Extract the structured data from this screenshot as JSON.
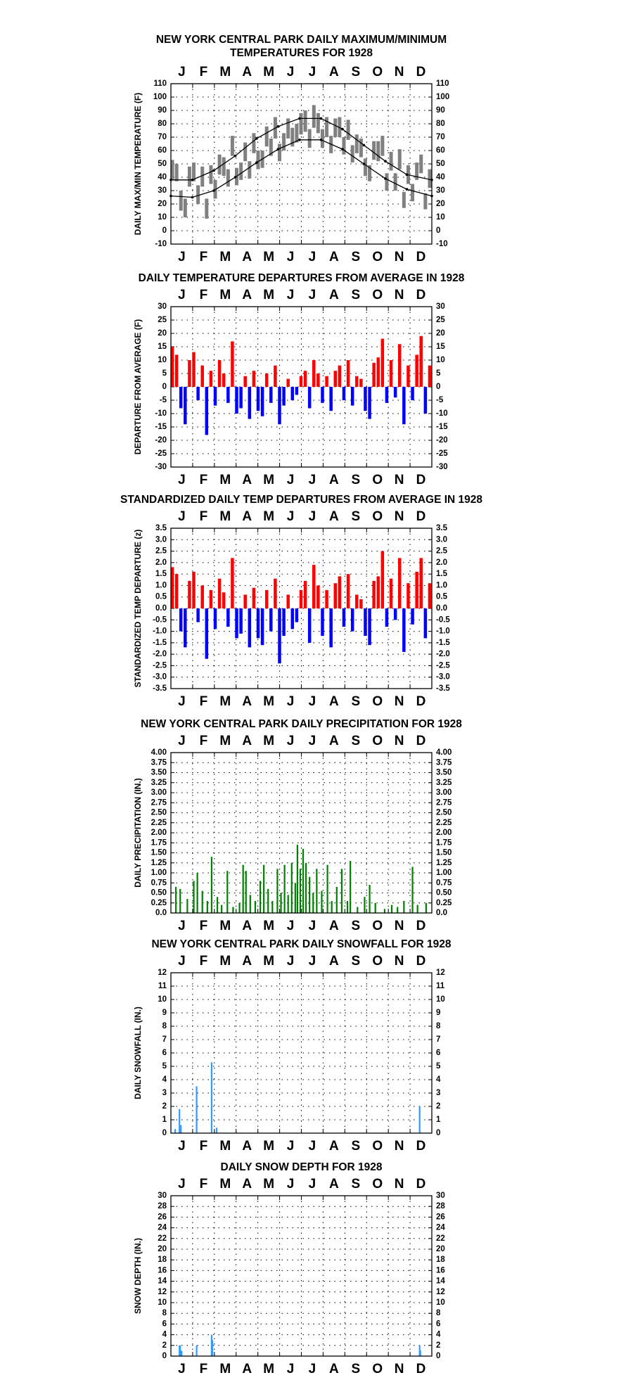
{
  "chart_data": [
    {
      "type": "range",
      "title": [
        "NEW YORK CENTRAL PARK DAILY MAXIMUM/MINIMUM",
        "TEMPERATURES FOR 1928"
      ],
      "ylabel": "DAILY MAX/MIN TEMPERATURE (F)",
      "months": [
        "J",
        "F",
        "M",
        "A",
        "M",
        "J",
        "J",
        "A",
        "S",
        "O",
        "N",
        "D"
      ],
      "xlim": [
        1,
        366
      ],
      "ylim": [
        -10,
        110
      ],
      "yticks": [
        -10,
        0,
        10,
        20,
        30,
        40,
        50,
        60,
        70,
        80,
        90,
        100,
        110
      ],
      "grid": true,
      "range_series": {
        "color": "#808080",
        "x": [
          3,
          9,
          15,
          21,
          27,
          33,
          39,
          45,
          51,
          57,
          63,
          69,
          75,
          81,
          87,
          93,
          99,
          105,
          111,
          117,
          123,
          129,
          135,
          141,
          147,
          153,
          159,
          165,
          171,
          177,
          183,
          189,
          195,
          201,
          207,
          213,
          219,
          225,
          231,
          237,
          243,
          249,
          255,
          261,
          267,
          273,
          279,
          285,
          291,
          297,
          303,
          309,
          315,
          321,
          327,
          333,
          339,
          345,
          351,
          357,
          363
        ],
        "high": [
          53,
          50,
          30,
          24,
          48,
          51,
          34,
          48,
          24,
          49,
          38,
          57,
          55,
          46,
          71,
          47,
          51,
          66,
          52,
          73,
          60,
          60,
          78,
          69,
          85,
          65,
          73,
          84,
          77,
          80,
          88,
          90,
          76,
          94,
          88,
          76,
          85,
          71,
          84,
          85,
          70,
          83,
          64,
          72,
          69,
          54,
          49,
          67,
          67,
          71,
          43,
          59,
          43,
          61,
          29,
          49,
          35,
          51,
          57,
          28,
          46
        ],
        "low": [
          38,
          37,
          15,
          10,
          33,
          37,
          20,
          33,
          9,
          35,
          24,
          42,
          41,
          33,
          56,
          34,
          38,
          52,
          39,
          58,
          46,
          47,
          63,
          56,
          69,
          52,
          60,
          69,
          63,
          66,
          72,
          74,
          62,
          77,
          73,
          62,
          70,
          58,
          70,
          70,
          57,
          68,
          51,
          58,
          55,
          41,
          37,
          53,
          52,
          56,
          30,
          45,
          30,
          46,
          17,
          35,
          22,
          38,
          43,
          16,
          32
        ]
      },
      "series": [
        {
          "color": "#000000",
          "x": [
            1,
            31,
            61,
            91,
            121,
            151,
            181,
            211,
            241,
            271,
            301,
            331,
            366
          ],
          "values": [
            38,
            38,
            45,
            56,
            69,
            78,
            84,
            84,
            76,
            64,
            52,
            42,
            38
          ]
        },
        {
          "color": "#000000",
          "x": [
            1,
            31,
            61,
            91,
            121,
            151,
            181,
            211,
            241,
            271,
            301,
            331,
            366
          ],
          "values": [
            26,
            25,
            30,
            40,
            51,
            61,
            68,
            68,
            61,
            50,
            39,
            31,
            26
          ]
        }
      ]
    },
    {
      "type": "bar",
      "title": "DAILY TEMPERATURE DEPARTURES FROM AVERAGE IN 1928",
      "ylabel": "DEPARTURE FROM AVERAGE (F)",
      "months": [
        "J",
        "F",
        "M",
        "A",
        "M",
        "J",
        "J",
        "A",
        "S",
        "O",
        "N",
        "D"
      ],
      "xlim": [
        1,
        366
      ],
      "ylim": [
        -30,
        30
      ],
      "yticks": [
        -30,
        -25,
        -20,
        -15,
        -10,
        -5,
        0,
        5,
        10,
        15,
        20,
        25,
        30
      ],
      "grid": true,
      "color_positive": "#ff0000",
      "color_negative": "#0000ff",
      "series": [
        {
          "x": [
            3,
            9,
            15,
            21,
            27,
            33,
            39,
            45,
            51,
            57,
            63,
            69,
            75,
            81,
            87,
            93,
            99,
            105,
            111,
            117,
            123,
            129,
            135,
            141,
            147,
            153,
            159,
            165,
            171,
            177,
            183,
            189,
            195,
            201,
            207,
            213,
            219,
            225,
            231,
            237,
            243,
            249,
            255,
            261,
            267,
            273,
            279,
            285,
            291,
            297,
            303,
            309,
            315,
            321,
            327,
            333,
            339,
            345,
            351,
            357,
            363
          ],
          "values": [
            15,
            12,
            -8,
            -14,
            10,
            13,
            -5,
            8,
            -18,
            6,
            -7,
            10,
            5,
            -6,
            17,
            -10,
            -8,
            4,
            -12,
            6,
            -9,
            -11,
            5,
            -6,
            8,
            -14,
            -7,
            3,
            -5,
            -3,
            4,
            6,
            -8,
            10,
            5,
            -6,
            4,
            -9,
            6,
            8,
            -5,
            10,
            -7,
            4,
            3,
            -9,
            -12,
            9,
            11,
            18,
            -6,
            10,
            -4,
            16,
            -14,
            8,
            -5,
            12,
            19,
            -10,
            8
          ]
        }
      ]
    },
    {
      "type": "bar",
      "title": "STANDARDIZED DAILY TEMP DEPARTURES FROM AVERAGE IN 1928",
      "ylabel": "STANDARDIZED TEMP DEPARTURE (z)",
      "months": [
        "J",
        "F",
        "M",
        "A",
        "M",
        "J",
        "J",
        "A",
        "S",
        "O",
        "N",
        "D"
      ],
      "xlim": [
        1,
        366
      ],
      "ylim": [
        -3.5,
        3.5
      ],
      "yticks": [
        -3.5,
        {
          "value": -3,
          "label": "-3.0"
        },
        -2.5,
        {
          "value": -2,
          "label": "-2.0"
        },
        -1.5,
        {
          "value": -1,
          "label": "-1.0"
        },
        -0.5,
        {
          "value": 0,
          "label": "0.0"
        },
        0.5,
        {
          "value": 1,
          "label": "1.0"
        },
        1.5,
        {
          "value": 2,
          "label": "2.0"
        },
        2.5,
        {
          "value": 3,
          "label": "3.0"
        },
        3.5
      ],
      "grid": true,
      "color_positive": "#ff0000",
      "color_negative": "#0000ff",
      "series": [
        {
          "x": [
            3,
            9,
            15,
            21,
            27,
            33,
            39,
            45,
            51,
            57,
            63,
            69,
            75,
            81,
            87,
            93,
            99,
            105,
            111,
            117,
            123,
            129,
            135,
            141,
            147,
            153,
            159,
            165,
            171,
            177,
            183,
            189,
            195,
            201,
            207,
            213,
            219,
            225,
            231,
            237,
            243,
            249,
            255,
            261,
            267,
            273,
            279,
            285,
            291,
            297,
            303,
            309,
            315,
            321,
            327,
            333,
            339,
            345,
            351,
            357,
            363
          ],
          "values": [
            1.8,
            1.5,
            -1.0,
            -1.7,
            1.2,
            1.6,
            -0.6,
            1.0,
            -2.2,
            0.8,
            -0.9,
            1.3,
            0.7,
            -0.8,
            2.2,
            -1.3,
            -1.1,
            0.6,
            -1.7,
            0.9,
            -1.3,
            -1.6,
            0.8,
            -1.0,
            1.3,
            -2.4,
            -1.2,
            0.6,
            -0.9,
            -0.6,
            0.8,
            1.2,
            -1.5,
            1.9,
            1.0,
            -1.2,
            0.8,
            -1.7,
            1.1,
            1.4,
            -0.8,
            1.5,
            -1.0,
            0.6,
            0.4,
            -1.2,
            -1.6,
            1.2,
            1.4,
            2.5,
            -0.8,
            1.3,
            -0.5,
            2.2,
            -1.9,
            1.1,
            -0.7,
            1.6,
            2.2,
            -1.3,
            1.1
          ]
        }
      ]
    },
    {
      "type": "bar",
      "title": "NEW YORK CENTRAL PARK DAILY PRECIPITATION FOR 1928",
      "ylabel": "DAILY PRECIPITATION (IN.)",
      "months": [
        "J",
        "F",
        "M",
        "A",
        "M",
        "J",
        "J",
        "A",
        "S",
        "O",
        "N",
        "D"
      ],
      "xlim": [
        1,
        366
      ],
      "ylim": [
        0,
        4
      ],
      "yticks": [
        {
          "value": 0,
          "label": "0.0"
        },
        0.25,
        {
          "value": 0.5,
          "label": "0.50"
        },
        0.75,
        {
          "value": 1,
          "label": "1.00"
        },
        1.25,
        {
          "value": 1.5,
          "label": "1.50"
        },
        1.75,
        {
          "value": 2,
          "label": "2.00"
        },
        2.25,
        {
          "value": 2.5,
          "label": "2.50"
        },
        2.75,
        {
          "value": 3,
          "label": "3.00"
        },
        3.25,
        {
          "value": 3.5,
          "label": "3.50"
        },
        3.75,
        {
          "value": 4,
          "label": "4.00"
        }
      ],
      "grid": true,
      "series": [
        {
          "color": "#008000",
          "x": [
            8,
            14,
            24,
            33,
            38,
            45,
            52,
            58,
            66,
            72,
            80,
            88,
            97,
            102,
            106,
            112,
            119,
            126,
            131,
            137,
            143,
            150,
            155,
            160,
            165,
            170,
            175,
            178,
            182,
            186,
            190,
            195,
            200,
            205,
            212,
            220,
            226,
            233,
            240,
            248,
            252,
            262,
            272,
            279,
            287,
            300,
            310,
            318,
            327,
            339,
            346,
            358
          ],
          "values": [
            0.65,
            0.6,
            0.35,
            0.8,
            1.0,
            0.55,
            0.3,
            1.4,
            0.4,
            0.2,
            1.05,
            0.15,
            0.25,
            1.2,
            1.05,
            0.45,
            0.3,
            0.8,
            1.2,
            0.6,
            0.3,
            1.1,
            0.5,
            1.2,
            0.45,
            1.25,
            0.75,
            1.7,
            1.1,
            1.6,
            1.25,
            0.9,
            0.5,
            1.1,
            0.55,
            1.2,
            0.3,
            0.65,
            1.1,
            0.3,
            1.3,
            0.15,
            0.4,
            0.7,
            0.25,
            0.1,
            0.2,
            0.15,
            0.3,
            1.15,
            0.2,
            0.25
          ]
        }
      ]
    },
    {
      "type": "bar",
      "title": "NEW YORK CENTRAL PARK DAILY SNOWFALL FOR 1928",
      "ylabel": "DAILY SNOWFALL (IN.)",
      "months": [
        "J",
        "F",
        "M",
        "A",
        "M",
        "J",
        "J",
        "A",
        "S",
        "O",
        "N",
        "D"
      ],
      "xlim": [
        1,
        366
      ],
      "ylim": [
        0,
        12
      ],
      "yticks": [
        0,
        1,
        2,
        3,
        4,
        5,
        6,
        7,
        8,
        9,
        10,
        11,
        12
      ],
      "grid": true,
      "series": [
        {
          "color": "#3399ff",
          "x": [
            7,
            13,
            15,
            37,
            58,
            65,
            349
          ],
          "values": [
            0.3,
            1.8,
            0.6,
            3.5,
            5.3,
            0.4,
            2.0
          ]
        }
      ]
    },
    {
      "type": "bar",
      "title": "DAILY SNOW DEPTH FOR 1928",
      "ylabel": "SNOW DEPTH (IN.)",
      "months": [
        "J",
        "F",
        "M",
        "A",
        "M",
        "J",
        "J",
        "A",
        "S",
        "O",
        "N",
        "D"
      ],
      "xlim": [
        1,
        366
      ],
      "ylim": [
        0,
        30
      ],
      "yticks": [
        0,
        2,
        4,
        6,
        8,
        10,
        12,
        14,
        16,
        18,
        20,
        22,
        24,
        26,
        28,
        30
      ],
      "grid": true,
      "series": [
        {
          "color": "#3399ff",
          "x": [
            13,
            14,
            15,
            16,
            37,
            58,
            59,
            349,
            350
          ],
          "values": [
            2,
            2,
            1,
            1,
            2,
            4,
            3,
            2,
            1
          ]
        }
      ]
    }
  ]
}
